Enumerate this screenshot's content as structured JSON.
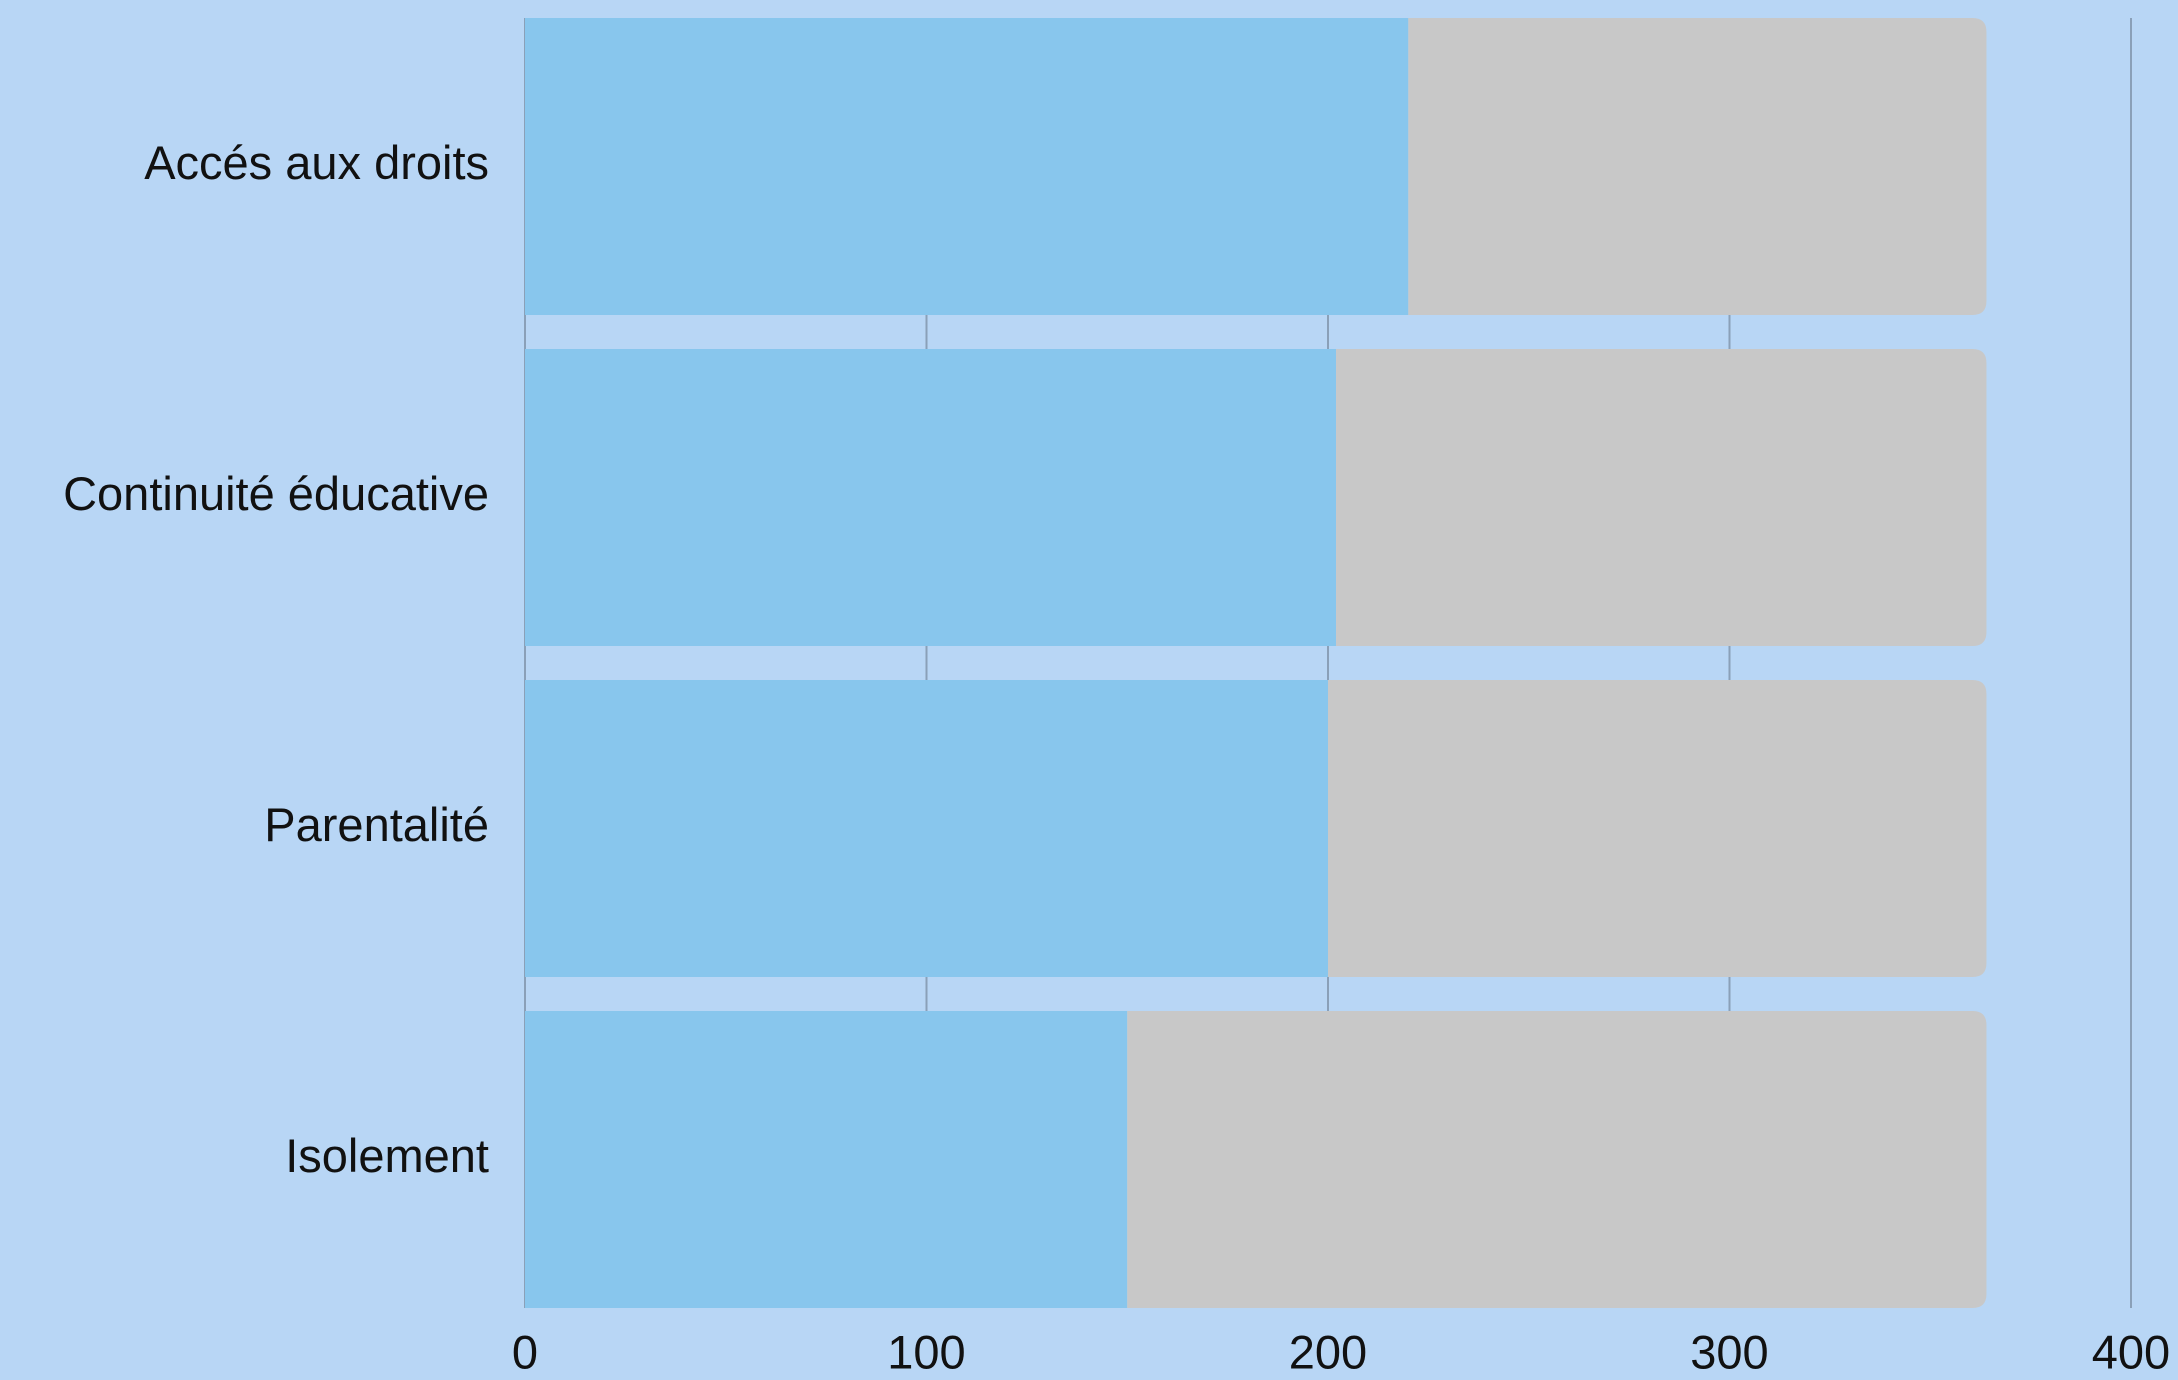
{
  "chart_data": {
    "type": "stacked-barh",
    "categories": [
      "Accés aux droits",
      "Continuité éducative",
      "Parentalité",
      "Isolement"
    ],
    "series": [
      {
        "color": "#88c6ed",
        "values": [
          220,
          202,
          200,
          150
        ]
      },
      {
        "color": "#c8c8c8",
        "values": [
          144,
          162,
          164,
          214
        ]
      }
    ],
    "xlim": [
      0,
      400
    ],
    "xticks": [
      0,
      100,
      200,
      300,
      400
    ],
    "grid": true
  }
}
